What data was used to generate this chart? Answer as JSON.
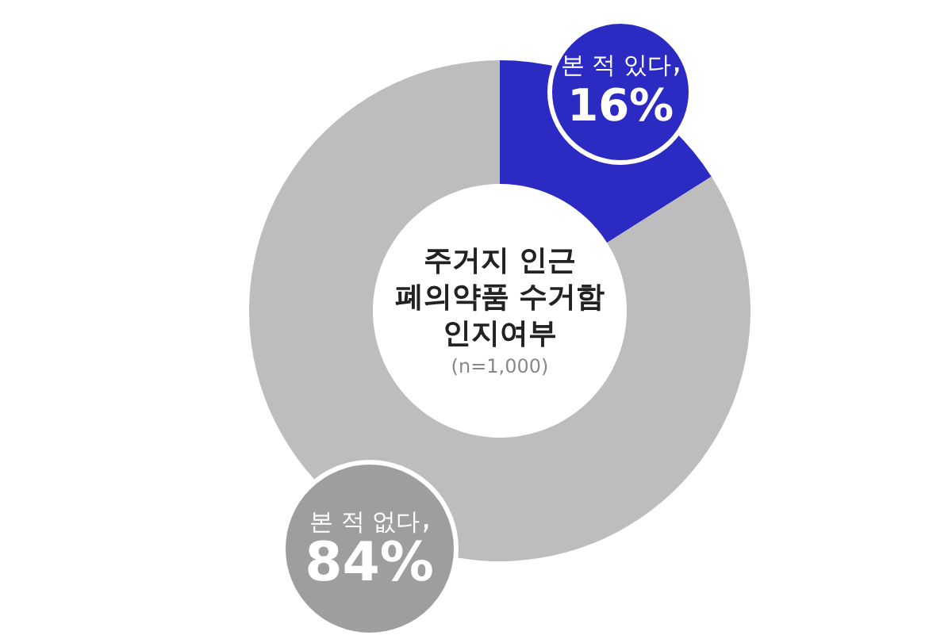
{
  "chart_data": {
    "type": "donut",
    "title": "주거지 인근 폐의약품 수거함 인지여부",
    "subtitle": "(n=1,000)",
    "categories": [
      "본 적 있다",
      "본 적 없다"
    ],
    "values": [
      16,
      84
    ],
    "colors": [
      "#2b2bc4",
      "#bdbdbd"
    ],
    "value_labels": [
      "16%",
      "84%"
    ]
  }
}
